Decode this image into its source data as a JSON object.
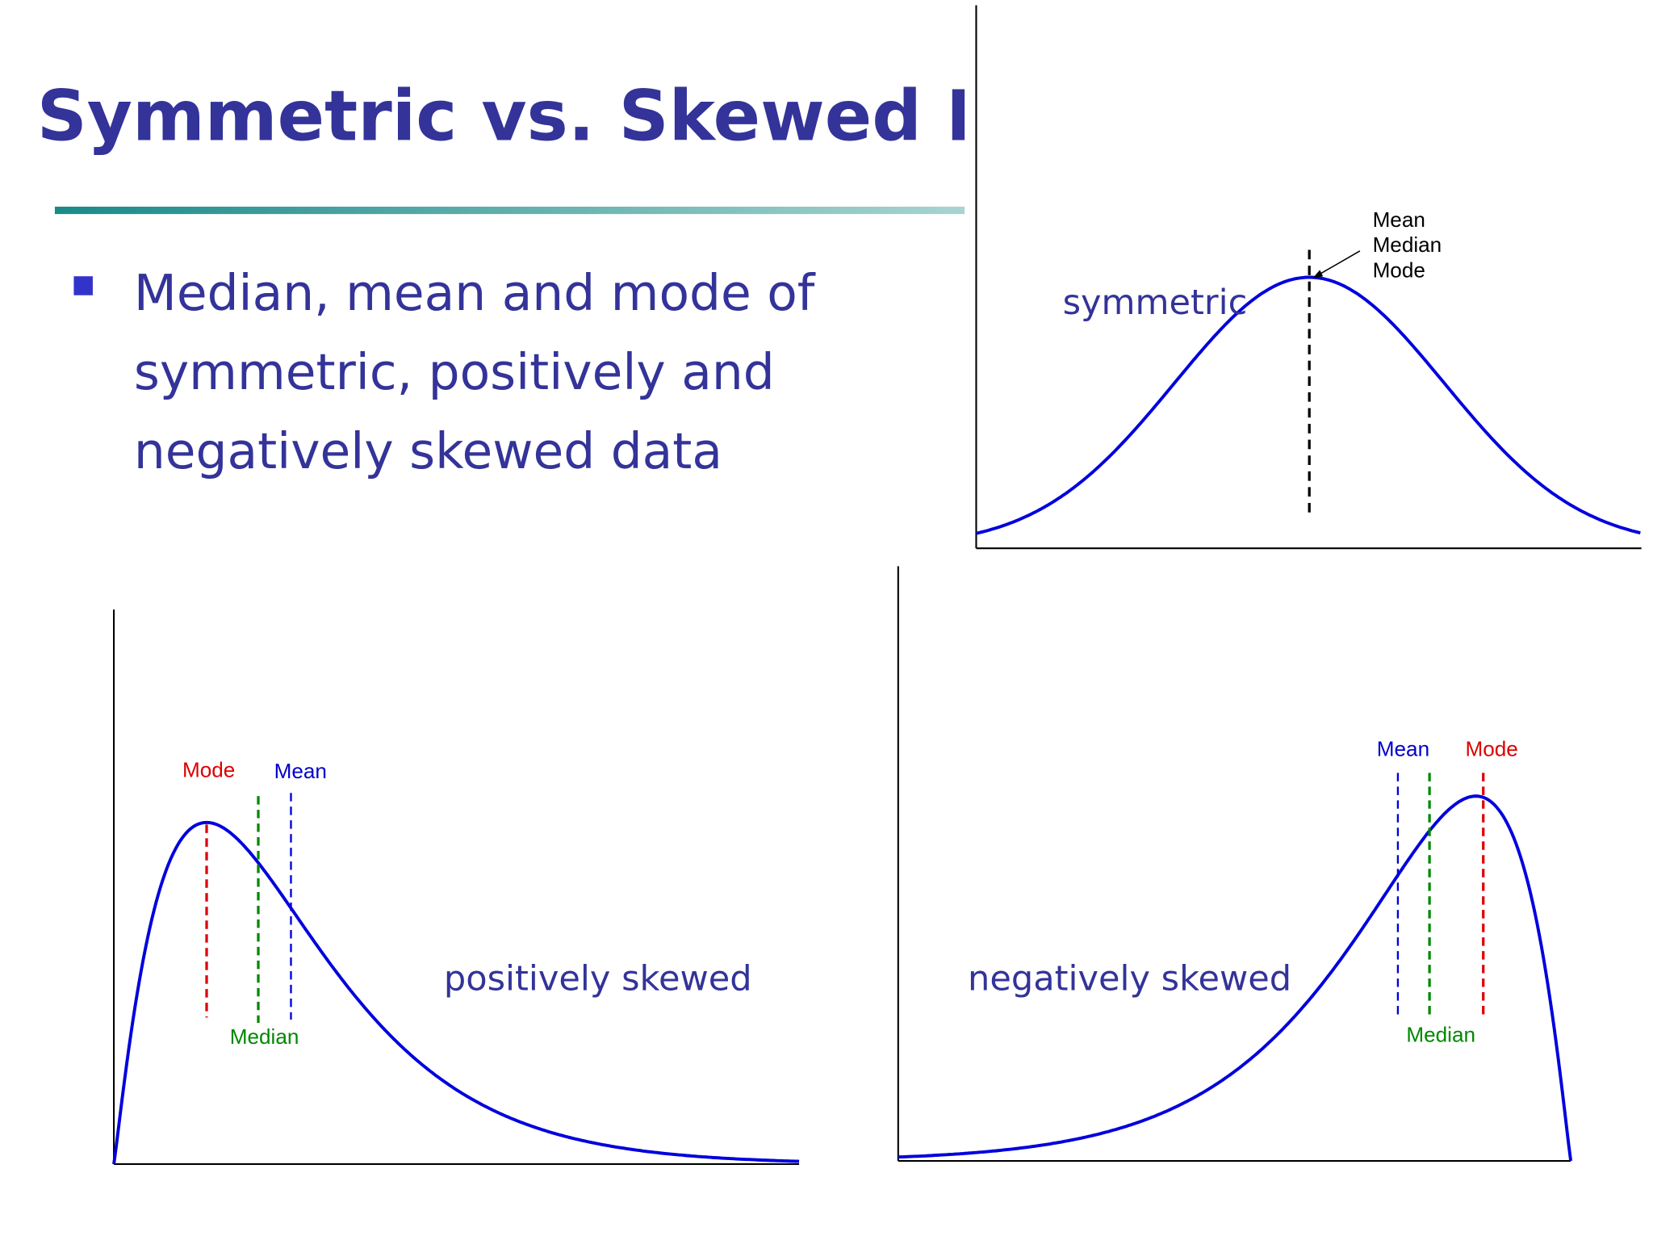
{
  "title": "Symmetric vs. Skewed Data",
  "bullet": [
    "Median, mean and mode of",
    "symmetric, positively and",
    "negatively skewed data"
  ],
  "symmetric": {
    "caption": "symmetric",
    "annotation": [
      "Mean",
      "Median",
      "Mode"
    ]
  },
  "positive": {
    "caption": "positively skewed",
    "mode": "Mode",
    "mean": "Mean",
    "median": "Median"
  },
  "negative": {
    "caption": "negatively skewed",
    "mean": "Mean",
    "mode": "Mode",
    "median": "Median"
  }
}
